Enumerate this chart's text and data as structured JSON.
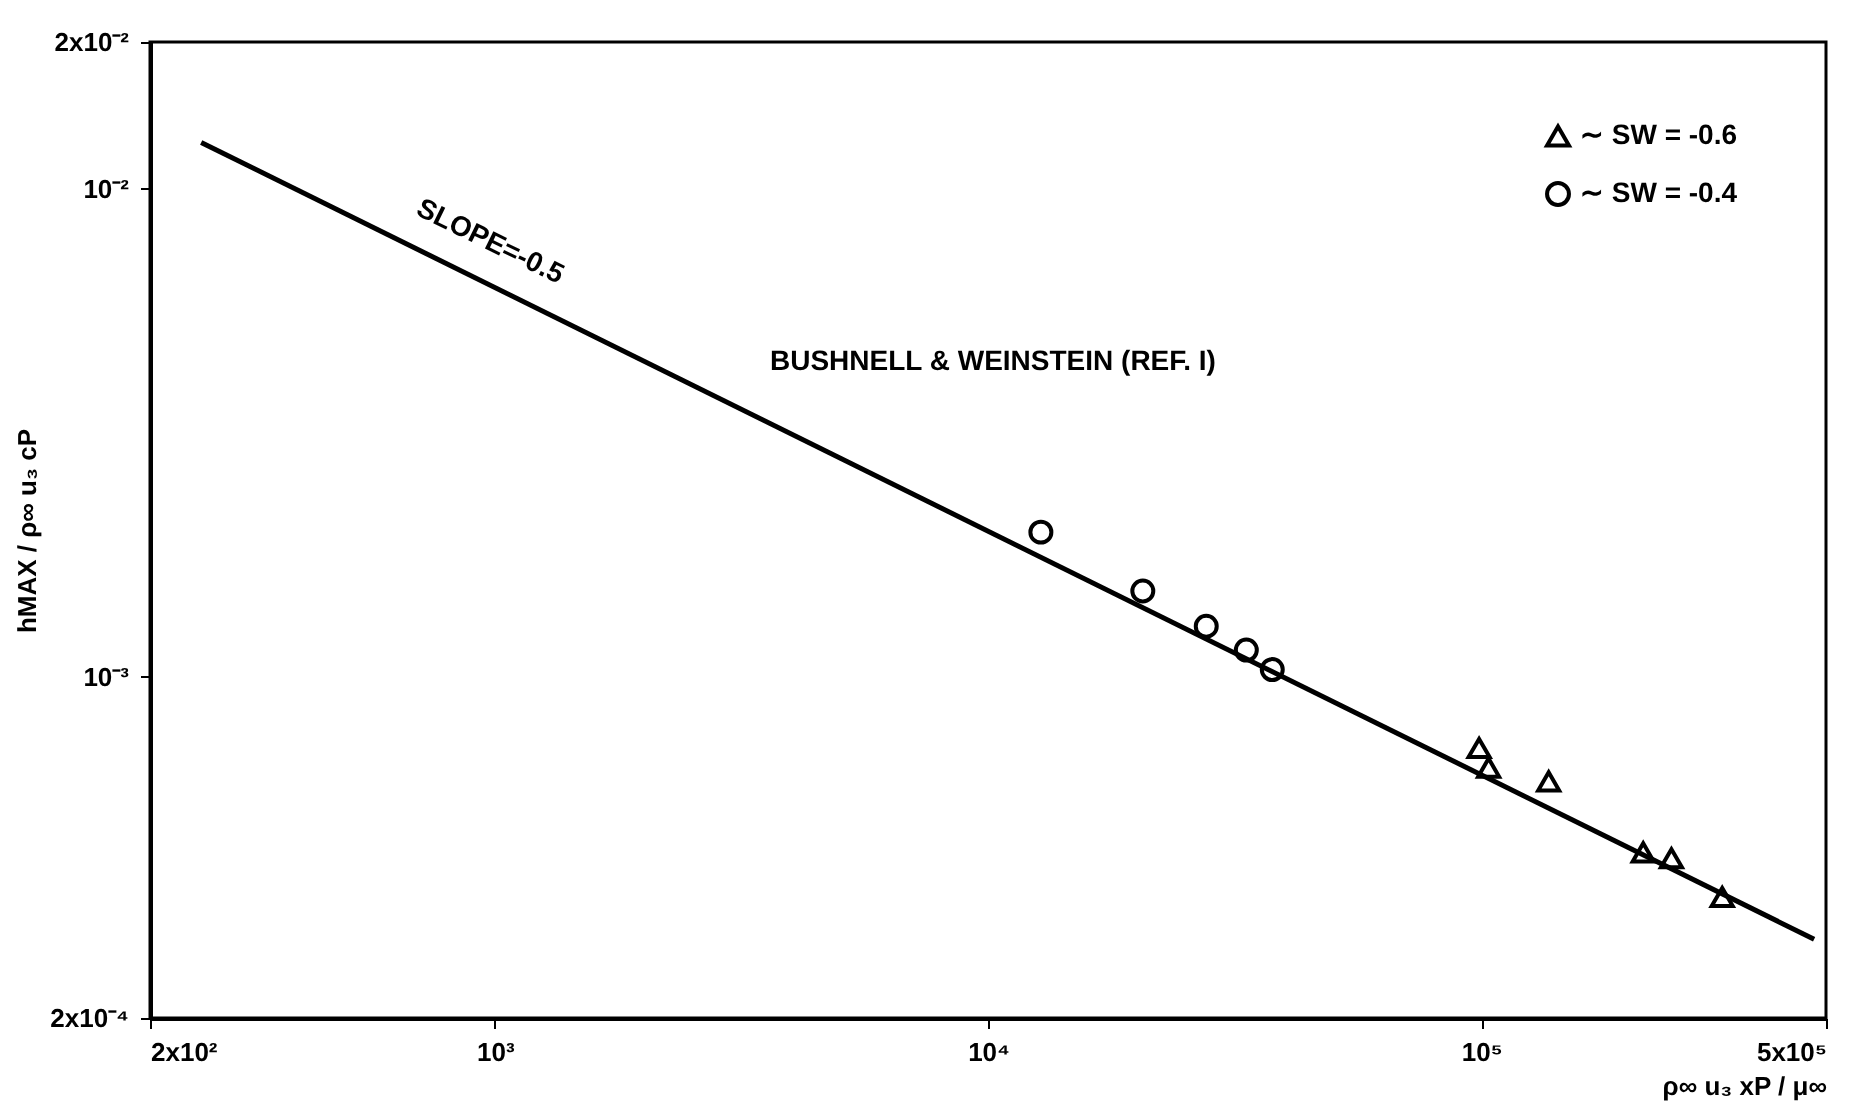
{
  "chart_data": {
    "type": "scatter",
    "xlabel": "ρ∞ u₃ xP / μ∞",
    "ylabel": "hMAX / ρ∞ u₃ cP",
    "log": "xy",
    "grid": false,
    "legend": "top right",
    "xlim": [
      200,
      500000
    ],
    "ylim": [
      0.0002,
      0.02
    ],
    "xticks": [
      {
        "value": 200,
        "label": "2x10²"
      },
      {
        "value": 1000,
        "label": "10³"
      },
      {
        "value": 10000,
        "label": "10⁴"
      },
      {
        "value": 100000,
        "label": "10⁵"
      },
      {
        "value": 500000,
        "label": "5x10⁵"
      }
    ],
    "yticks": [
      {
        "value": 0.0002,
        "label": "2x10⁻⁴"
      },
      {
        "value": 0.001,
        "label": "10⁻³"
      },
      {
        "value": 0.01,
        "label": "10⁻²"
      },
      {
        "value": 0.02,
        "label": "2x10⁻²"
      }
    ],
    "series": [
      {
        "type": "line",
        "color": "#000000",
        "marker": "none",
        "line_style": "solid",
        "x": [
          254,
          473000
        ],
        "values": [
          0.01245,
          0.00029
        ]
      },
      {
        "name": "∼  SW = -0.6",
        "marker": "triangle",
        "color": "#000000",
        "x": [
          99000,
          103500,
          137000,
          213000,
          243000,
          308000
        ],
        "values": [
          0.000715,
          0.000652,
          0.000611,
          0.000437,
          0.000425,
          0.000354
        ]
      },
      {
        "name": "∼  SW = -0.4",
        "marker": "circle",
        "color": "#000000",
        "x": [
          12800,
          20600,
          27700,
          33400,
          37700
        ],
        "values": [
          0.00198,
          0.0015,
          0.00127,
          0.001135,
          0.001035
        ]
      }
    ],
    "annotations": [
      "SLOPE=-0.5",
      "BUSHNELL & WEINSTEIN (REF. I)"
    ]
  }
}
